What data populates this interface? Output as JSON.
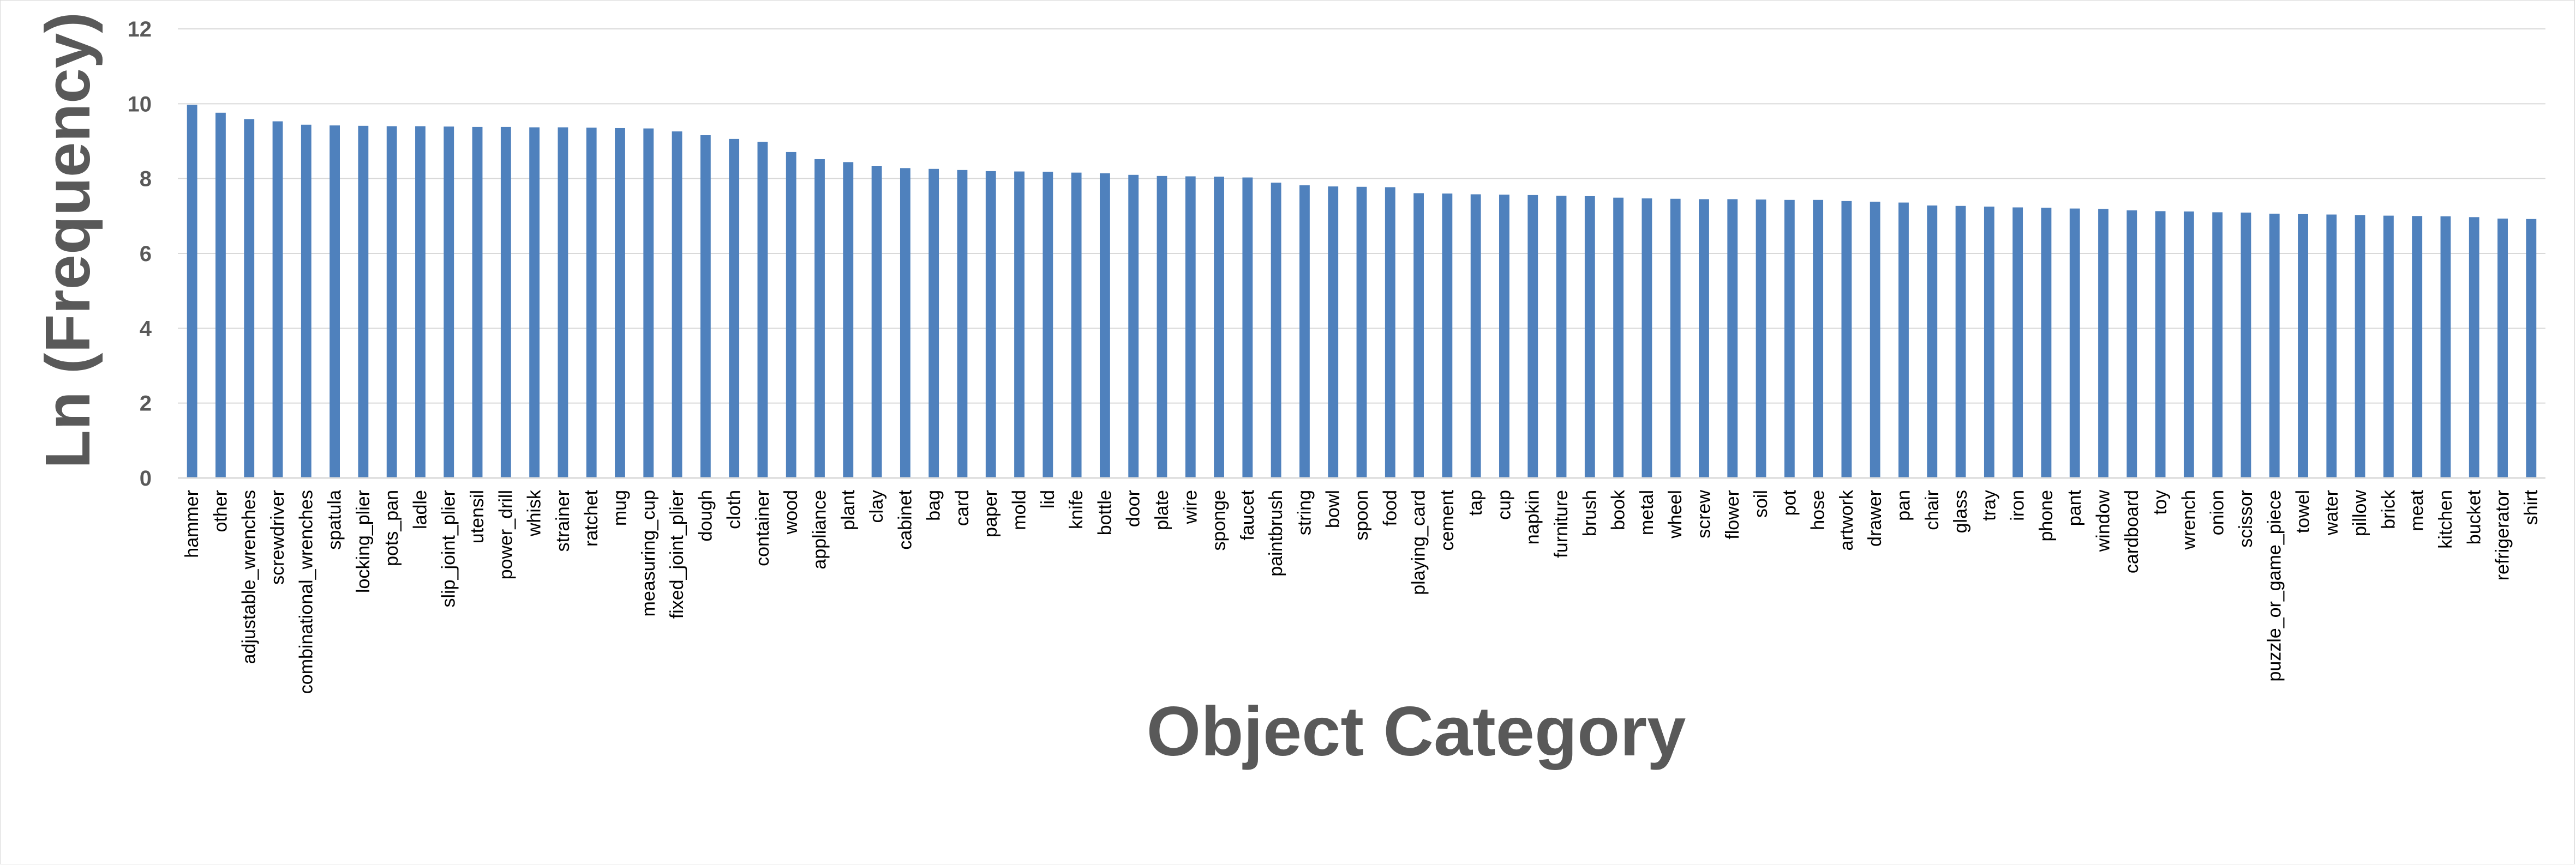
{
  "chart_data": {
    "type": "bar",
    "title": "",
    "xlabel": "Object Category",
    "ylabel": "Ln (Frequency)",
    "ylim": [
      0,
      12
    ],
    "yticks": [
      0,
      2,
      4,
      6,
      8,
      10,
      12
    ],
    "grid": true,
    "legend": "none",
    "bar_color": "#4F81BD",
    "grid_color": "#D9D9D9",
    "categories": [
      "hammer",
      "other",
      "adjustable_wrenches",
      "screwdriver",
      "combinational_wrenches",
      "spatula",
      "locking_plier",
      "pots_pan",
      "ladle",
      "slip_joint_plier",
      "utensil",
      "power_drill",
      "whisk",
      "strainer",
      "ratchet",
      "mug",
      "measuring_cup",
      "fixed_joint_plier",
      "dough",
      "cloth",
      "container",
      "wood",
      "appliance",
      "plant",
      "clay",
      "cabinet",
      "bag",
      "card",
      "paper",
      "mold",
      "lid",
      "knife",
      "bottle",
      "door",
      "plate",
      "wire",
      "sponge",
      "faucet",
      "paintbrush",
      "string",
      "bowl",
      "spoon",
      "food",
      "playing_card",
      "cement",
      "tap",
      "cup",
      "napkin",
      "furniture",
      "brush",
      "book",
      "metal",
      "wheel",
      "screw",
      "flower",
      "soil",
      "pot",
      "hose",
      "artwork",
      "drawer",
      "pan",
      "chair",
      "glass",
      "tray",
      "iron",
      "phone",
      "pant",
      "window",
      "cardboard",
      "toy",
      "wrench",
      "onion",
      "scissor",
      "puzzle_or_game_piece",
      "towel",
      "water",
      "pillow",
      "brick",
      "meat",
      "kitchen",
      "bucket",
      "refrigerator",
      "shirt"
    ],
    "values": [
      9.97,
      9.76,
      9.59,
      9.53,
      9.44,
      9.42,
      9.41,
      9.4,
      9.4,
      9.39,
      9.38,
      9.38,
      9.37,
      9.37,
      9.36,
      9.35,
      9.34,
      9.26,
      9.16,
      9.06,
      8.98,
      8.71,
      8.52,
      8.44,
      8.33,
      8.28,
      8.26,
      8.23,
      8.2,
      8.19,
      8.18,
      8.16,
      8.14,
      8.1,
      8.07,
      8.06,
      8.05,
      8.03,
      7.89,
      7.82,
      7.79,
      7.78,
      7.77,
      7.61,
      7.6,
      7.58,
      7.57,
      7.56,
      7.54,
      7.53,
      7.49,
      7.47,
      7.46,
      7.45,
      7.45,
      7.44,
      7.43,
      7.43,
      7.4,
      7.38,
      7.36,
      7.28,
      7.27,
      7.25,
      7.23,
      7.22,
      7.2,
      7.19,
      7.15,
      7.13,
      7.12,
      7.1,
      7.09,
      7.06,
      7.05,
      7.04,
      7.02,
      7.01,
      7.0,
      6.99,
      6.97,
      6.93,
      6.92
    ]
  }
}
